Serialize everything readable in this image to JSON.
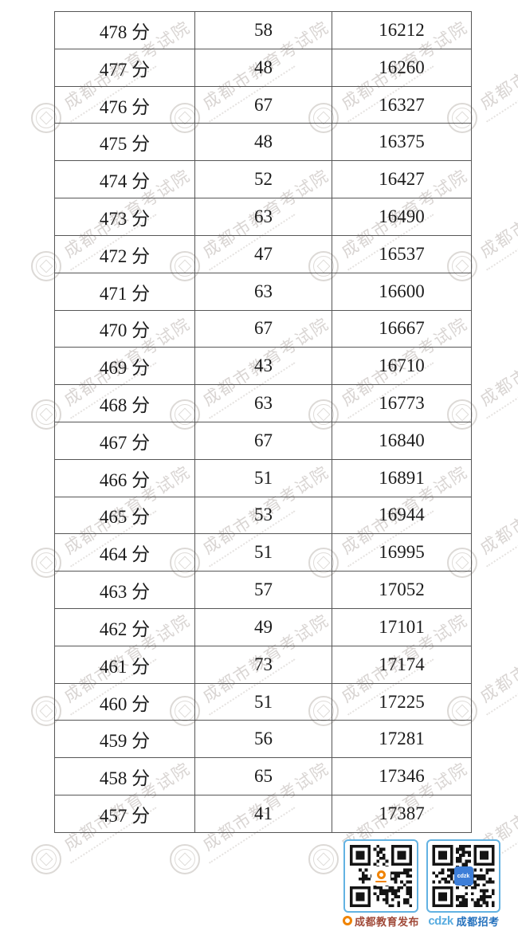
{
  "watermark": {
    "text": "成都市教育考试院"
  },
  "table": {
    "unit_suffix": "分",
    "rows": [
      {
        "score": "478 分",
        "count": "58",
        "cumulative": "16212"
      },
      {
        "score": "477 分",
        "count": "48",
        "cumulative": "16260"
      },
      {
        "score": "476 分",
        "count": "67",
        "cumulative": "16327"
      },
      {
        "score": "475 分",
        "count": "48",
        "cumulative": "16375"
      },
      {
        "score": "474 分",
        "count": "52",
        "cumulative": "16427"
      },
      {
        "score": "473 分",
        "count": "63",
        "cumulative": "16490"
      },
      {
        "score": "472 分",
        "count": "47",
        "cumulative": "16537"
      },
      {
        "score": "471 分",
        "count": "63",
        "cumulative": "16600"
      },
      {
        "score": "470 分",
        "count": "67",
        "cumulative": "16667"
      },
      {
        "score": "469 分",
        "count": "43",
        "cumulative": "16710"
      },
      {
        "score": "468 分",
        "count": "63",
        "cumulative": "16773"
      },
      {
        "score": "467 分",
        "count": "67",
        "cumulative": "16840"
      },
      {
        "score": "466 分",
        "count": "51",
        "cumulative": "16891"
      },
      {
        "score": "465 分",
        "count": "53",
        "cumulative": "16944"
      },
      {
        "score": "464 分",
        "count": "51",
        "cumulative": "16995"
      },
      {
        "score": "463 分",
        "count": "57",
        "cumulative": "17052"
      },
      {
        "score": "462 分",
        "count": "49",
        "cumulative": "17101"
      },
      {
        "score": "461 分",
        "count": "73",
        "cumulative": "17174"
      },
      {
        "score": "460 分",
        "count": "51",
        "cumulative": "17225"
      },
      {
        "score": "459 分",
        "count": "56",
        "cumulative": "17281"
      },
      {
        "score": "458 分",
        "count": "65",
        "cumulative": "17346"
      },
      {
        "score": "457 分",
        "count": "41",
        "cumulative": "17387"
      }
    ]
  },
  "footer": {
    "qr1": {
      "label": "成都教育发布"
    },
    "qr2": {
      "brand": "cdzk",
      "brand_logo_text": "cdzk",
      "label": "成都招考"
    }
  },
  "colors": {
    "table_border": "#565656",
    "table_text": "#1b1b1b",
    "qr_frame_blue": "#62b2e2",
    "label1_red": "#a04938",
    "logo_orange": "#f08300",
    "cdzk_light_blue": "#58ace0",
    "cdzk_dark_blue": "#2471bd",
    "qr2_logo_blue": "#3d7ed8",
    "watermark_gray": "#a49c95"
  }
}
